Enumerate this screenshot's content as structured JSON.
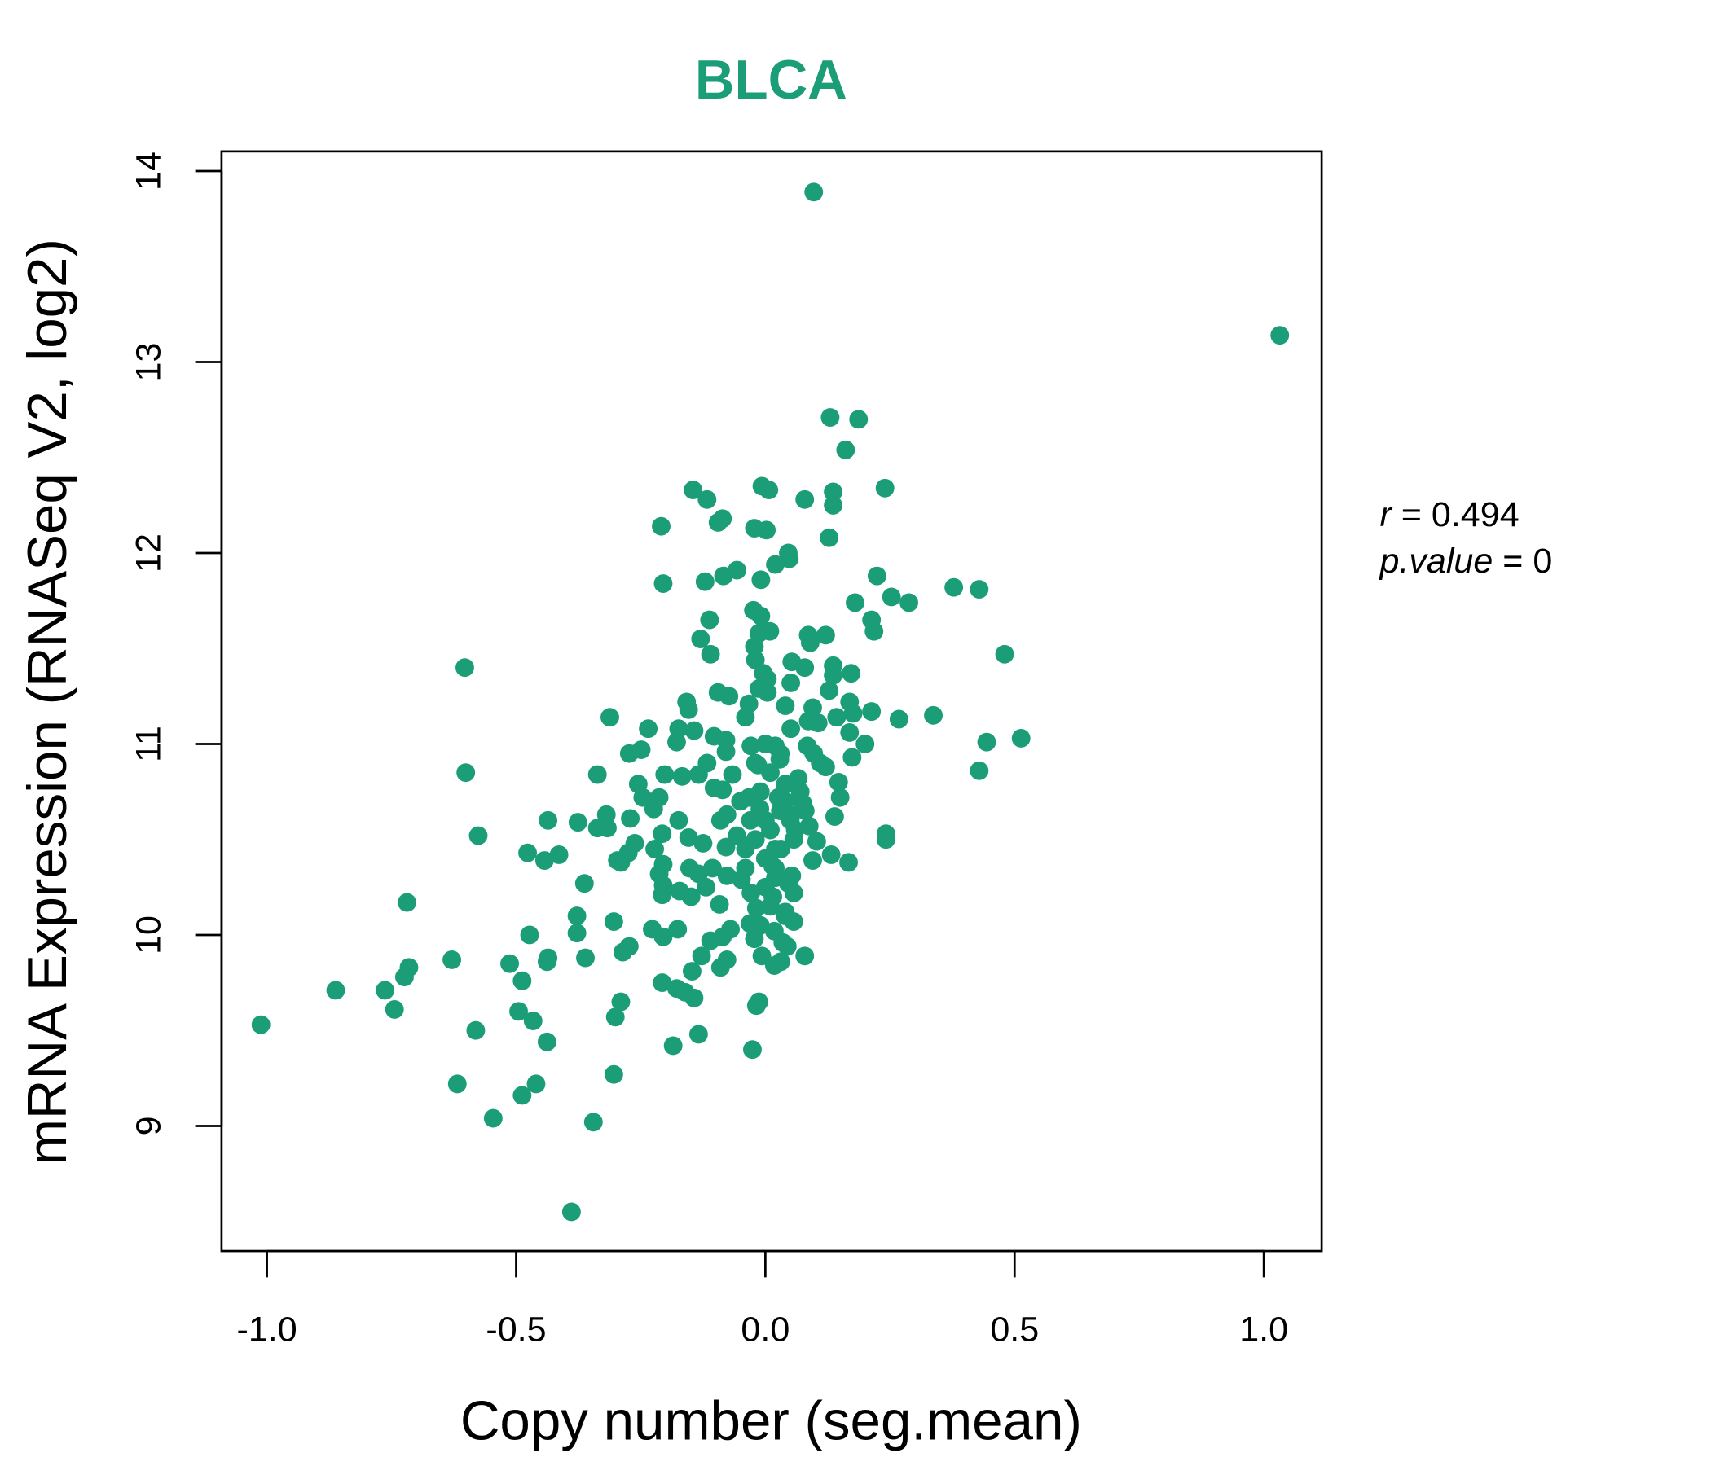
{
  "chart_data": {
    "type": "scatter",
    "title": "BLCA",
    "xlabel": "Copy number (seg.mean)",
    "ylabel": "mRNA Expression (RNASeq V2, log2)",
    "xlim": [
      -1.091,
      1.116
    ],
    "ylim": [
      8.345,
      14.103
    ],
    "xticks": [
      -1.0,
      -0.5,
      0.0,
      0.5,
      1.0
    ],
    "xtick_labels": [
      "-1.0",
      "-0.5",
      "0.0",
      "0.5",
      "1.0"
    ],
    "yticks": [
      9,
      10,
      11,
      12,
      13,
      14
    ],
    "ytick_labels": [
      "9",
      "10",
      "11",
      "12",
      "13",
      "14"
    ],
    "grid": false,
    "colors": {
      "point": "#1B9E77",
      "title": "#1B9E77",
      "axis": "#000000"
    },
    "annotation": {
      "r_label": "r",
      "r_value": "0.494",
      "p_label": "p.value",
      "p_value": "0",
      "eq": "="
    },
    "points": [
      [
        0.097,
        13.89
      ],
      [
        1.032,
        13.14
      ],
      [
        0.13,
        12.71
      ],
      [
        0.187,
        12.7
      ],
      [
        0.161,
        12.54
      ],
      [
        -0.145,
        12.33
      ],
      [
        -0.117,
        12.28
      ],
      [
        -0.007,
        12.35
      ],
      [
        0.007,
        12.33
      ],
      [
        0.136,
        12.32
      ],
      [
        0.24,
        12.34
      ],
      [
        0.079,
        12.28
      ],
      [
        0.136,
        12.25
      ],
      [
        -0.086,
        12.18
      ],
      [
        -0.095,
        12.16
      ],
      [
        -0.209,
        12.14
      ],
      [
        -0.022,
        12.13
      ],
      [
        0.002,
        12.12
      ],
      [
        0.128,
        12.08
      ],
      [
        0.046,
        12.0
      ],
      [
        0.048,
        11.97
      ],
      [
        0.02,
        11.94
      ],
      [
        -0.057,
        11.91
      ],
      [
        -0.084,
        11.88
      ],
      [
        0.224,
        11.88
      ],
      [
        -0.121,
        11.85
      ],
      [
        -0.009,
        11.86
      ],
      [
        -0.205,
        11.84
      ],
      [
        0.378,
        11.82
      ],
      [
        0.429,
        11.81
      ],
      [
        0.253,
        11.77
      ],
      [
        0.288,
        11.74
      ],
      [
        0.18,
        11.74
      ],
      [
        -0.024,
        11.7
      ],
      [
        -0.009,
        11.67
      ],
      [
        -0.112,
        11.65
      ],
      [
        0.213,
        11.65
      ],
      [
        0.218,
        11.59
      ],
      [
        0.009,
        11.59
      ],
      [
        -0.013,
        11.58
      ],
      [
        0.086,
        11.57
      ],
      [
        0.121,
        11.57
      ],
      [
        -0.13,
        11.55
      ],
      [
        0.09,
        11.53
      ],
      [
        -0.022,
        11.51
      ],
      [
        -0.11,
        11.47
      ],
      [
        0.48,
        11.47
      ],
      [
        -0.02,
        11.44
      ],
      [
        0.053,
        11.43
      ],
      [
        0.136,
        11.41
      ],
      [
        -0.603,
        11.4
      ],
      [
        0.079,
        11.4
      ],
      [
        0.172,
        11.37
      ],
      [
        -0.004,
        11.37
      ],
      [
        0.004,
        11.34
      ],
      [
        0.136,
        11.36
      ],
      [
        0.051,
        11.32
      ],
      [
        -0.013,
        11.29
      ],
      [
        0.128,
        11.28
      ],
      [
        -0.095,
        11.27
      ],
      [
        -0.073,
        11.25
      ],
      [
        0.004,
        11.27
      ],
      [
        -0.158,
        11.22
      ],
      [
        -0.154,
        11.18
      ],
      [
        -0.033,
        11.21
      ],
      [
        0.169,
        11.22
      ],
      [
        0.04,
        11.2
      ],
      [
        0.095,
        11.19
      ],
      [
        0.176,
        11.16
      ],
      [
        0.213,
        11.17
      ],
      [
        0.337,
        11.15
      ],
      [
        -0.312,
        11.14
      ],
      [
        -0.04,
        11.14
      ],
      [
        0.143,
        11.14
      ],
      [
        0.268,
        11.13
      ],
      [
        0.086,
        11.12
      ],
      [
        0.106,
        11.11
      ],
      [
        -0.235,
        11.08
      ],
      [
        -0.174,
        11.08
      ],
      [
        0.051,
        11.08
      ],
      [
        -0.143,
        11.07
      ],
      [
        0.169,
        11.06
      ],
      [
        -0.103,
        11.04
      ],
      [
        -0.079,
        11.02
      ],
      [
        0.513,
        11.03
      ],
      [
        0.444,
        11.01
      ],
      [
        -0.178,
        11.01
      ],
      [
        0.2,
        11.0
      ],
      [
        -0.029,
        10.99
      ],
      [
        0.02,
        10.99
      ],
      [
        0.084,
        10.99
      ],
      [
        -0.249,
        10.97
      ],
      [
        -0.273,
        10.95
      ],
      [
        -0.079,
        10.96
      ],
      [
        0.097,
        10.95
      ],
      [
        0.174,
        10.93
      ],
      [
        0.029,
        10.92
      ],
      [
        0.11,
        10.9
      ],
      [
        -0.117,
        10.9
      ],
      [
        -0.015,
        10.89
      ],
      [
        0.429,
        10.86
      ],
      [
        0.121,
        10.88
      ],
      [
        -0.601,
        10.85
      ],
      [
        -0.337,
        10.84
      ],
      [
        -0.202,
        10.84
      ],
      [
        -0.134,
        10.84
      ],
      [
        -0.066,
        10.84
      ],
      [
        -0.167,
        10.83
      ],
      [
        0.066,
        10.82
      ],
      [
        0.147,
        10.8
      ],
      [
        0.04,
        10.79
      ],
      [
        -0.255,
        10.79
      ],
      [
        -0.103,
        10.77
      ],
      [
        -0.086,
        10.76
      ],
      [
        -0.246,
        10.72
      ],
      [
        -0.213,
        10.72
      ],
      [
        0.15,
        10.72
      ],
      [
        -0.033,
        10.72
      ],
      [
        0.026,
        10.72
      ],
      [
        0.075,
        10.69
      ],
      [
        -0.224,
        10.66
      ],
      [
        -0.011,
        10.66
      ],
      [
        -0.319,
        10.63
      ],
      [
        -0.077,
        10.63
      ],
      [
        0.048,
        10.63
      ],
      [
        -0.271,
        10.61
      ],
      [
        0.139,
        10.62
      ],
      [
        -0.436,
        10.6
      ],
      [
        -0.376,
        10.59
      ],
      [
        -0.09,
        10.6
      ],
      [
        -0.174,
        10.6
      ],
      [
        -0.317,
        10.56
      ],
      [
        -0.337,
        10.56
      ],
      [
        0.088,
        10.57
      ],
      [
        0.242,
        10.53
      ],
      [
        -0.576,
        10.52
      ],
      [
        -0.057,
        10.52
      ],
      [
        0.242,
        10.5
      ],
      [
        -0.207,
        10.53
      ],
      [
        -0.154,
        10.51
      ],
      [
        0.057,
        10.5
      ],
      [
        0.103,
        10.49
      ],
      [
        -0.262,
        10.48
      ],
      [
        -0.125,
        10.48
      ],
      [
        -0.222,
        10.45
      ],
      [
        -0.079,
        10.46
      ],
      [
        0.031,
        10.45
      ],
      [
        -0.477,
        10.43
      ],
      [
        -0.414,
        10.42
      ],
      [
        -0.275,
        10.43
      ],
      [
        0.132,
        10.42
      ],
      [
        -0.443,
        10.39
      ],
      [
        -0.297,
        10.39
      ],
      [
        -0.29,
        10.38
      ],
      [
        0.095,
        10.39
      ],
      [
        0.167,
        10.38
      ],
      [
        -0.205,
        10.37
      ],
      [
        -0.152,
        10.35
      ],
      [
        -0.106,
        10.35
      ],
      [
        -0.04,
        10.35
      ],
      [
        0.015,
        10.36
      ],
      [
        -0.213,
        10.32
      ],
      [
        -0.134,
        10.32
      ],
      [
        -0.077,
        10.31
      ],
      [
        0.053,
        10.31
      ],
      [
        -0.363,
        10.27
      ],
      [
        -0.048,
        10.29
      ],
      [
        -0.205,
        10.26
      ],
      [
        -0.119,
        10.25
      ],
      [
        0.046,
        10.27
      ],
      [
        -0.172,
        10.23
      ],
      [
        0.057,
        10.22
      ],
      [
        -0.207,
        10.21
      ],
      [
        -0.149,
        10.2
      ],
      [
        -0.029,
        10.22
      ],
      [
        0.015,
        10.2
      ],
      [
        -0.719,
        10.17
      ],
      [
        -0.092,
        10.16
      ],
      [
        -0.018,
        10.14
      ],
      [
        0.04,
        10.12
      ],
      [
        -0.378,
        10.1
      ],
      [
        -0.304,
        10.07
      ],
      [
        0.057,
        10.07
      ],
      [
        -0.031,
        10.06
      ],
      [
        -0.227,
        10.03
      ],
      [
        -0.176,
        10.03
      ],
      [
        -0.378,
        10.01
      ],
      [
        -0.07,
        10.03
      ],
      [
        0.018,
        10.02
      ],
      [
        -0.473,
        10.0
      ],
      [
        -0.205,
        9.99
      ],
      [
        -0.086,
        9.99
      ],
      [
        -0.022,
        9.98
      ],
      [
        -0.11,
        9.97
      ],
      [
        0.035,
        9.96
      ],
      [
        0.044,
        9.94
      ],
      [
        -0.273,
        9.94
      ],
      [
        -0.286,
        9.91
      ],
      [
        -0.128,
        9.89
      ],
      [
        -0.007,
        9.89
      ],
      [
        0.079,
        9.89
      ],
      [
        -0.629,
        9.87
      ],
      [
        -0.361,
        9.88
      ],
      [
        -0.436,
        9.88
      ],
      [
        -0.438,
        9.86
      ],
      [
        -0.077,
        9.87
      ],
      [
        0.018,
        9.84
      ],
      [
        -0.513,
        9.85
      ],
      [
        0.031,
        9.86
      ],
      [
        -0.715,
        9.83
      ],
      [
        -0.09,
        9.83
      ],
      [
        -0.147,
        9.81
      ],
      [
        -0.724,
        9.78
      ],
      [
        -0.488,
        9.76
      ],
      [
        -0.207,
        9.75
      ],
      [
        -0.862,
        9.71
      ],
      [
        -0.763,
        9.71
      ],
      [
        -0.178,
        9.72
      ],
      [
        -0.161,
        9.7
      ],
      [
        -0.143,
        9.67
      ],
      [
        -0.29,
        9.65
      ],
      [
        -0.013,
        9.65
      ],
      [
        -0.018,
        9.63
      ],
      [
        -0.744,
        9.61
      ],
      [
        -0.495,
        9.6
      ],
      [
        -0.466,
        9.55
      ],
      [
        -0.301,
        9.57
      ],
      [
        -1.012,
        9.53
      ],
      [
        -0.581,
        9.5
      ],
      [
        -0.134,
        9.48
      ],
      [
        -0.438,
        9.44
      ],
      [
        -0.185,
        9.42
      ],
      [
        -0.026,
        9.4
      ],
      [
        -0.304,
        9.27
      ],
      [
        -0.618,
        9.22
      ],
      [
        -0.46,
        9.22
      ],
      [
        -0.488,
        9.16
      ],
      [
        -0.546,
        9.04
      ],
      [
        -0.345,
        9.02
      ],
      [
        -0.389,
        8.55
      ],
      [
        0.0,
        10.6
      ],
      [
        0.01,
        10.55
      ],
      [
        -0.02,
        10.5
      ],
      [
        0.03,
        10.65
      ],
      [
        0.04,
        10.7
      ],
      [
        -0.01,
        10.75
      ],
      [
        0.02,
        10.45
      ],
      [
        0.05,
        10.6
      ],
      [
        0.0,
        10.4
      ],
      [
        -0.03,
        10.6
      ],
      [
        0.06,
        10.55
      ],
      [
        0.01,
        10.85
      ],
      [
        -0.02,
        10.9
      ],
      [
        0.03,
        10.95
      ],
      [
        0.0,
        11.0
      ],
      [
        0.02,
        10.3
      ],
      [
        -0.04,
        10.45
      ],
      [
        0.07,
        10.75
      ],
      [
        0.0,
        10.25
      ],
      [
        0.01,
        10.15
      ],
      [
        -0.01,
        10.05
      ],
      [
        0.04,
        10.1
      ],
      [
        0.02,
        10.35
      ],
      [
        -0.05,
        10.7
      ],
      [
        0.08,
        10.65
      ]
    ]
  }
}
